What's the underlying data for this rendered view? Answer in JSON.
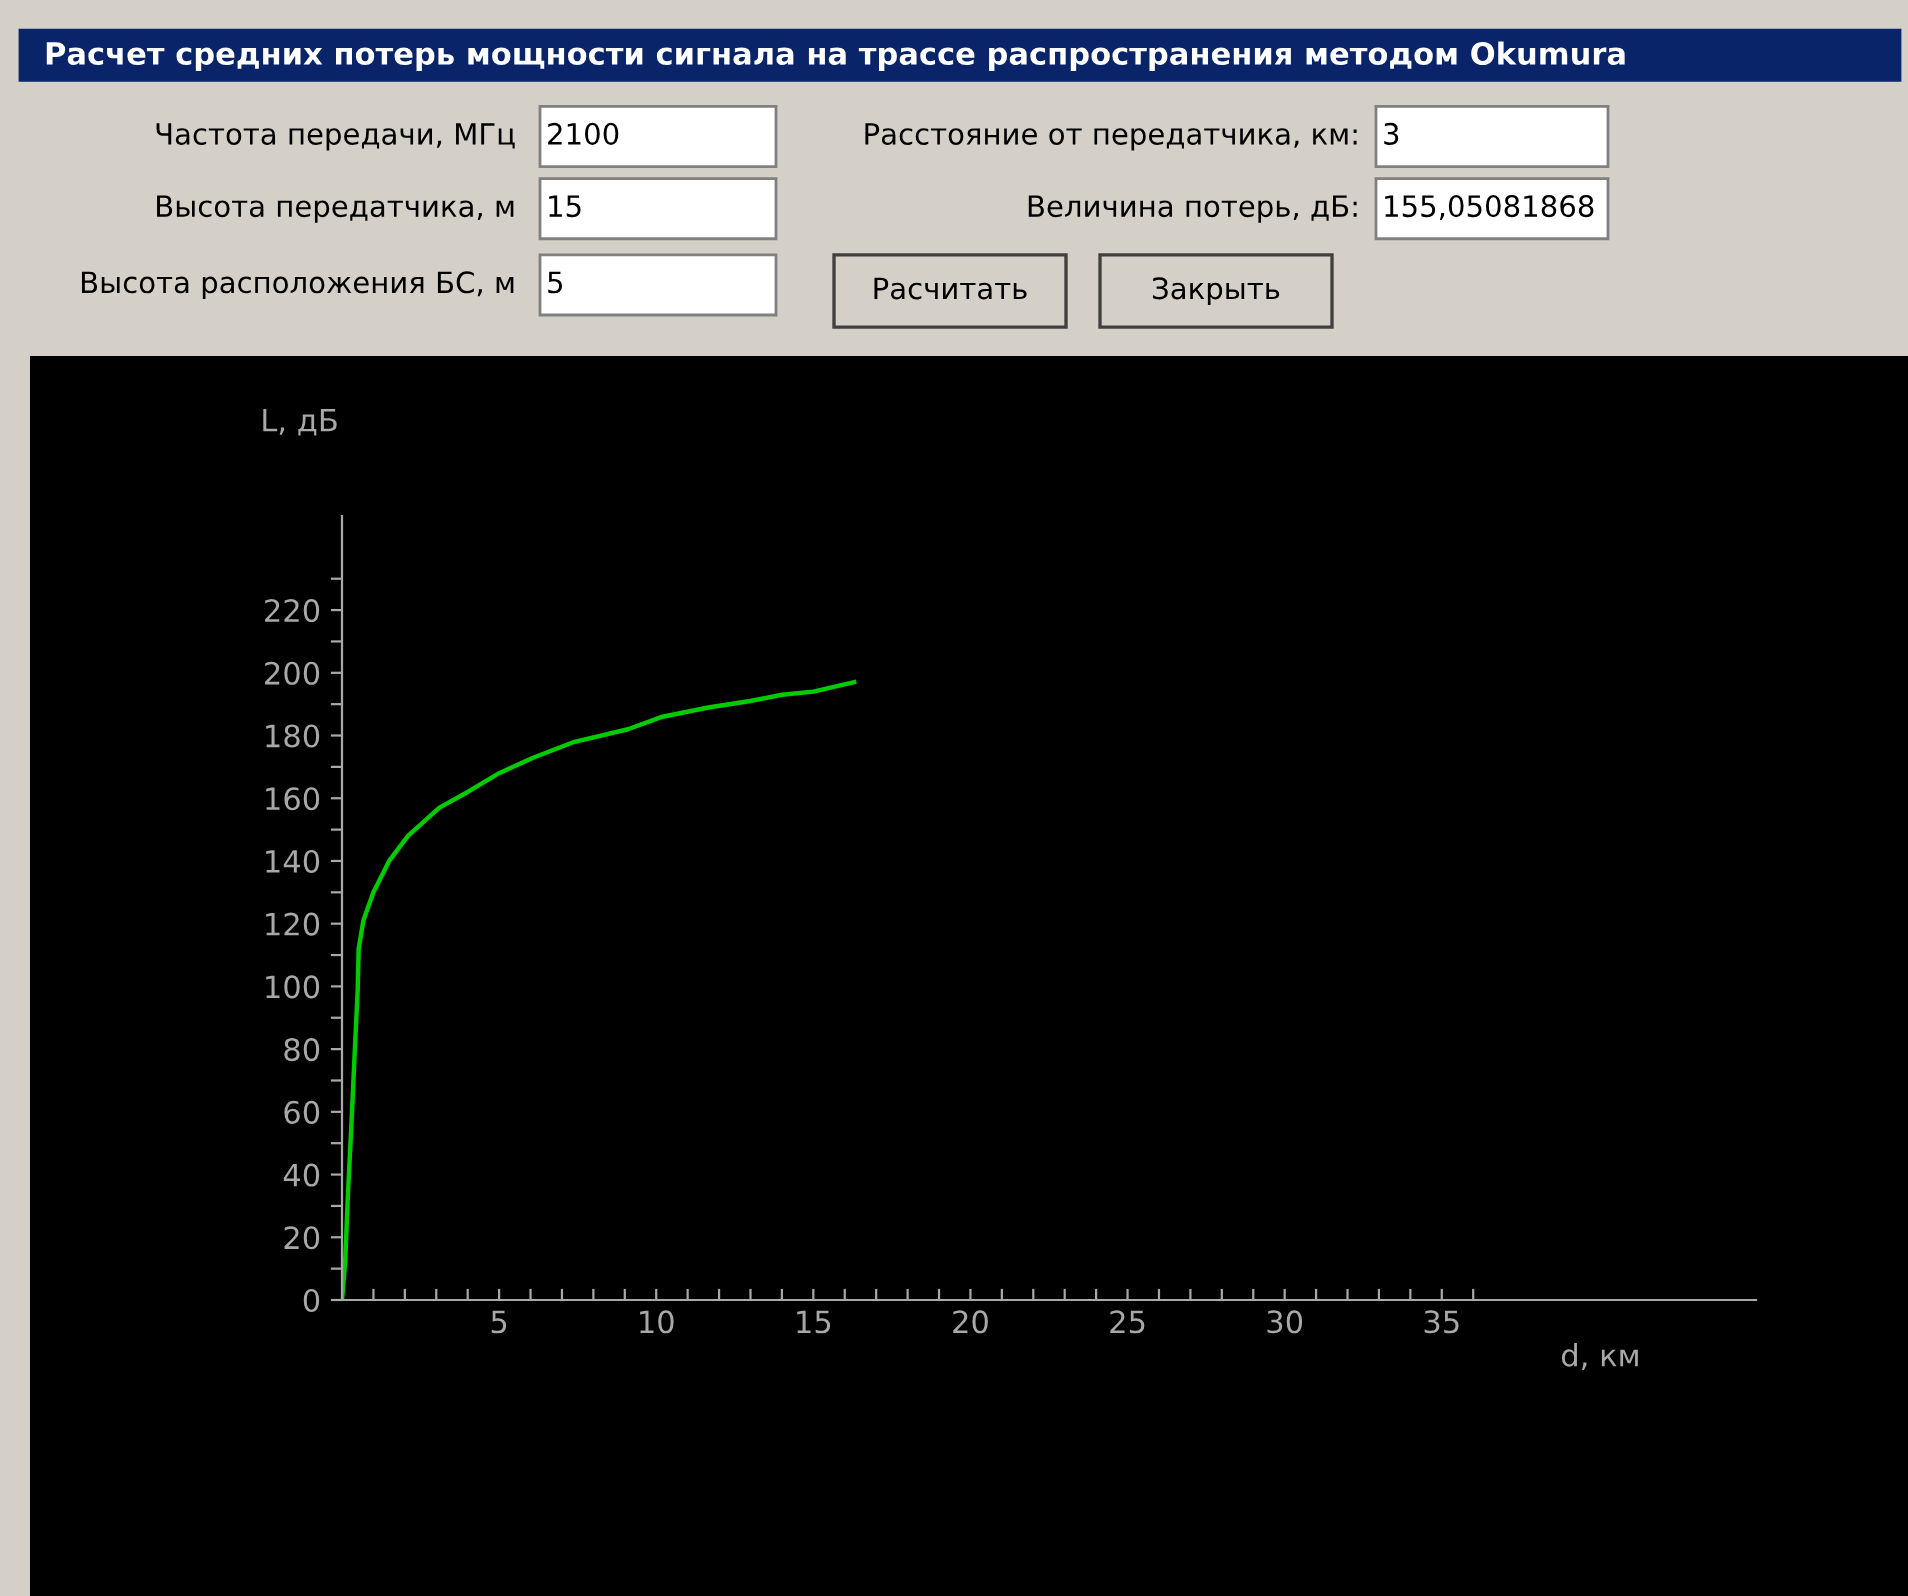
{
  "chart_data": [
    {
      "type": "other",
      "title": "Расчет средних потерь мощности сигнала на трассе распространения методом Okumura",
      "annotations": [
        "Частота передачи, МГц",
        "2100",
        "Высота передатчика, м",
        "15",
        "Высота расположения БС, м",
        "5",
        "Расстояние от передатчика, км:",
        "3",
        "Величина потерь, дБ:",
        "155,05081868",
        "Расчитать",
        "Закрыть"
      ]
    },
    {
      "type": "line",
      "xlabel": "d, км",
      "ylabel": "L, дБ",
      "grid": false,
      "marker": "none",
      "line_style": "solid",
      "xlim": [
        0,
        45
      ],
      "ylim": [
        0,
        250
      ],
      "xticks": [
        {
          "value": 1,
          "label": null
        },
        {
          "value": 2,
          "label": null
        },
        {
          "value": 3,
          "label": null
        },
        {
          "value": 4,
          "label": null
        },
        5,
        {
          "value": 6,
          "label": null
        },
        {
          "value": 7,
          "label": null
        },
        {
          "value": 8,
          "label": null
        },
        {
          "value": 9,
          "label": null
        },
        10,
        {
          "value": 11,
          "label": null
        },
        {
          "value": 12,
          "label": null
        },
        {
          "value": 13,
          "label": null
        },
        {
          "value": 14,
          "label": null
        },
        15,
        {
          "value": 16,
          "label": null
        },
        {
          "value": 17,
          "label": null
        },
        {
          "value": 18,
          "label": null
        },
        {
          "value": 19,
          "label": null
        },
        20,
        {
          "value": 21,
          "label": null
        },
        {
          "value": 22,
          "label": null
        },
        {
          "value": 23,
          "label": null
        },
        {
          "value": 24,
          "label": null
        },
        25,
        {
          "value": 26,
          "label": null
        },
        {
          "value": 27,
          "label": null
        },
        {
          "value": 28,
          "label": null
        },
        {
          "value": 29,
          "label": null
        },
        30,
        {
          "value": 31,
          "label": null
        },
        {
          "value": 32,
          "label": null
        },
        {
          "value": 33,
          "label": null
        },
        {
          "value": 34,
          "label": null
        },
        35,
        {
          "value": 36,
          "label": null
        }
      ],
      "yticks": [
        0,
        {
          "value": 10,
          "label": null
        },
        20,
        {
          "value": 30,
          "label": null
        },
        40,
        {
          "value": 50,
          "label": null
        },
        60,
        {
          "value": 70,
          "label": null
        },
        80,
        {
          "value": 90,
          "label": null
        },
        100,
        {
          "value": 110,
          "label": null
        },
        120,
        {
          "value": 130,
          "label": null
        },
        140,
        {
          "value": 150,
          "label": null
        },
        160,
        {
          "value": 170,
          "label": null
        },
        180,
        {
          "value": 190,
          "label": null
        },
        200,
        {
          "value": 210,
          "label": null
        },
        220,
        {
          "value": 230,
          "label": null
        }
      ],
      "x": [
        0,
        0.1,
        0.19,
        0.3,
        0.4,
        0.5,
        0.53,
        0.68,
        1.0,
        1.5,
        2.1,
        3.1,
        4.0,
        5.0,
        6.1,
        7.4,
        9.1,
        10.2,
        11.7,
        13.0,
        14.0,
        15.0,
        16.3
      ],
      "series": [
        {
          "color": "#00cc00",
          "values": [
            0,
            12,
            34,
            56,
            78,
            99,
            112,
            121,
            130,
            140,
            148,
            157,
            162,
            168,
            173,
            178,
            182,
            186,
            189,
            191,
            193,
            194,
            197
          ]
        }
      ]
    }
  ]
}
